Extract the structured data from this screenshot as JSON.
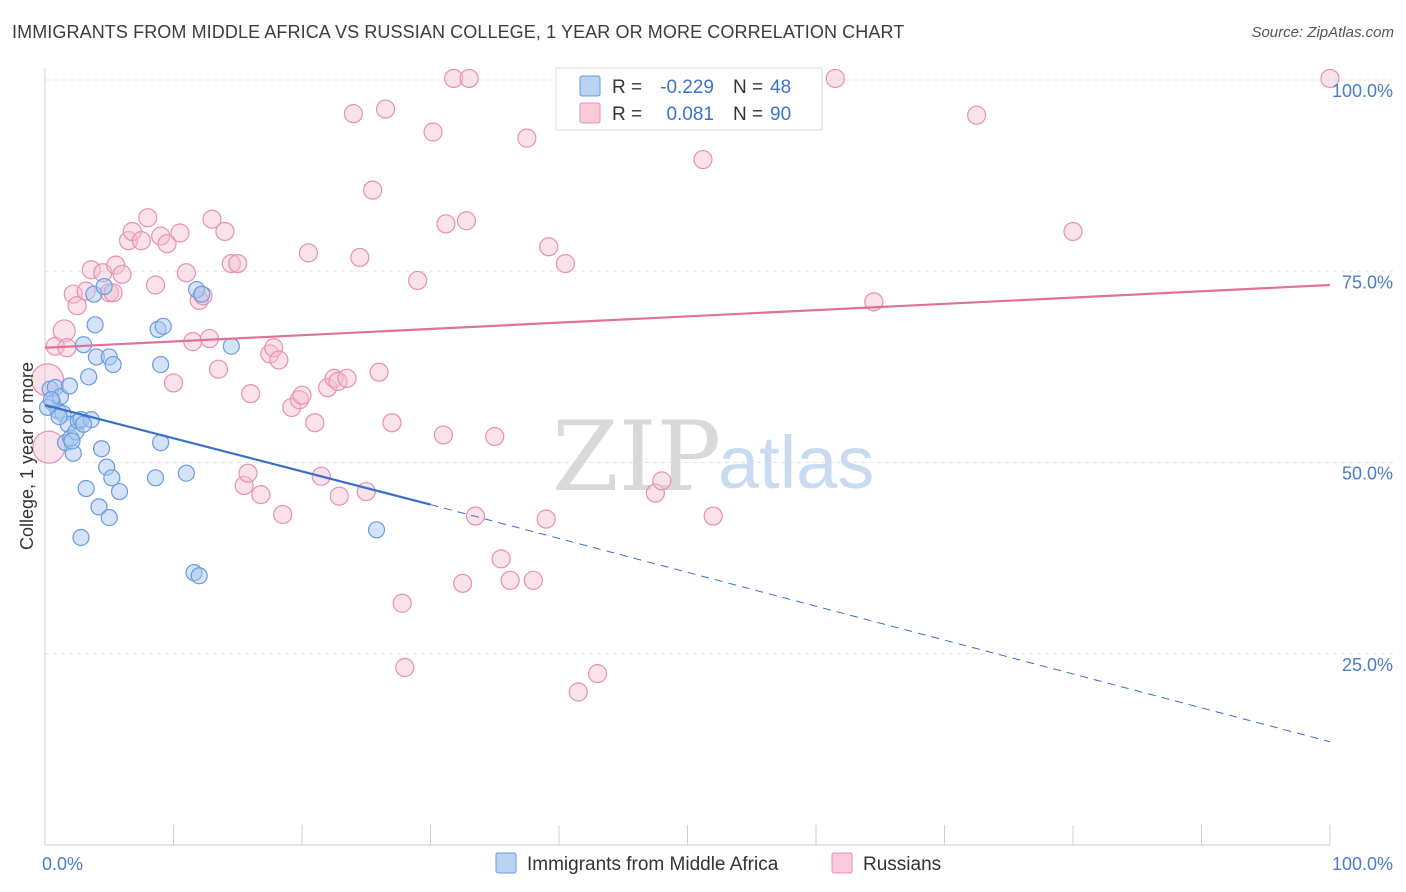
{
  "header": {
    "title": "IMMIGRANTS FROM MIDDLE AFRICA VS RUSSIAN COLLEGE, 1 YEAR OR MORE CORRELATION CHART",
    "source": "Source: ZipAtlas.com"
  },
  "watermark": {
    "zip": "ZIP",
    "atlas": "atlas"
  },
  "legend": {
    "r_label": "R =",
    "n_label": "N =",
    "series": [
      {
        "r": "-0.229",
        "n": "48"
      },
      {
        "r": "0.081",
        "n": "90"
      }
    ]
  },
  "colors": {
    "blue_fill": "#a9c8ef",
    "blue_stroke": "#6a9ae0",
    "blue_line": "#3a6fc9",
    "pink_fill": "#f5bfd2",
    "pink_stroke": "#e890b0",
    "pink_line": "#e0719a",
    "grid": "#e3e3e3",
    "axis_label": "#4a7cc9"
  },
  "chart_data": {
    "type": "scatter",
    "title": "IMMIGRANTS FROM MIDDLE AFRICA VS RUSSIAN COLLEGE, 1 YEAR OR MORE CORRELATION CHART",
    "xlabel": "",
    "ylabel": "College, 1 year or more",
    "xlim": [
      0,
      100
    ],
    "ylim": [
      0,
      105
    ],
    "x_tick_labels": [
      "0.0%",
      "100.0%"
    ],
    "y_ticks": [
      25,
      50,
      75,
      100
    ],
    "y_tick_labels": [
      "25.0%",
      "50.0%",
      "75.0%",
      "100.0%"
    ],
    "series": [
      {
        "name": "Immigrants from Middle Africa",
        "color": "#a9c8ef",
        "trend": {
          "x0": 0,
          "y0": 57.5,
          "x1": 30,
          "y1": 44.5,
          "dash_to_x": 100,
          "dash_to_y": 13.5
        },
        "points": [
          [
            0.4,
            59.6
          ],
          [
            0.6,
            57.8
          ],
          [
            0.8,
            59.8
          ],
          [
            1.0,
            56.8
          ],
          [
            1.2,
            58.6
          ],
          [
            1.4,
            56.4
          ],
          [
            1.6,
            52.6
          ],
          [
            1.8,
            55.0
          ],
          [
            1.9,
            60.0
          ],
          [
            2.0,
            53.2
          ],
          [
            2.2,
            51.2
          ],
          [
            2.4,
            54.0
          ],
          [
            2.6,
            55.4
          ],
          [
            2.8,
            55.6
          ],
          [
            3.0,
            65.4
          ],
          [
            3.2,
            46.6
          ],
          [
            3.4,
            61.2
          ],
          [
            3.6,
            55.6
          ],
          [
            3.8,
            72.0
          ],
          [
            3.9,
            68.0
          ],
          [
            4.0,
            63.8
          ],
          [
            4.2,
            44.2
          ],
          [
            4.4,
            51.8
          ],
          [
            4.6,
            73.0
          ],
          [
            4.8,
            49.4
          ],
          [
            5.0,
            63.8
          ],
          [
            5.2,
            48.0
          ],
          [
            5.3,
            62.8
          ],
          [
            5.0,
            42.8
          ],
          [
            5.8,
            46.2
          ],
          [
            2.8,
            40.2
          ],
          [
            8.8,
            67.4
          ],
          [
            9.0,
            52.6
          ],
          [
            8.6,
            48.0
          ],
          [
            9.0,
            62.8
          ],
          [
            9.2,
            67.8
          ],
          [
            11.0,
            48.6
          ],
          [
            11.6,
            35.6
          ],
          [
            12.0,
            35.2
          ],
          [
            11.8,
            72.6
          ],
          [
            14.5,
            65.2
          ],
          [
            12.2,
            72.0
          ],
          [
            25.8,
            41.2
          ],
          [
            0.2,
            57.2
          ],
          [
            0.5,
            58.2
          ],
          [
            1.1,
            56.0
          ],
          [
            2.1,
            52.8
          ],
          [
            3.0,
            55.0
          ]
        ]
      },
      {
        "name": "Russians",
        "color": "#f5bfd2",
        "trend": {
          "x0": 0,
          "y0": 65.0,
          "x1": 100,
          "y1": 73.2
        },
        "points": [
          [
            0.2,
            60.8
          ],
          [
            0.3,
            52.0
          ],
          [
            0.8,
            65.2
          ],
          [
            1.5,
            67.2
          ],
          [
            1.7,
            65.0
          ],
          [
            2.2,
            72.0
          ],
          [
            2.5,
            70.5
          ],
          [
            3.2,
            72.4
          ],
          [
            3.6,
            75.2
          ],
          [
            4.5,
            74.8
          ],
          [
            5.0,
            72.2
          ],
          [
            5.3,
            72.2
          ],
          [
            5.5,
            75.8
          ],
          [
            6.0,
            74.6
          ],
          [
            6.5,
            79.0
          ],
          [
            6.8,
            80.2
          ],
          [
            7.5,
            79.0
          ],
          [
            8.0,
            82.0
          ],
          [
            8.6,
            73.2
          ],
          [
            9.0,
            79.6
          ],
          [
            9.5,
            78.6
          ],
          [
            10.0,
            60.4
          ],
          [
            10.5,
            80.0
          ],
          [
            11.0,
            74.8
          ],
          [
            11.5,
            65.8
          ],
          [
            12.0,
            71.2
          ],
          [
            12.3,
            71.8
          ],
          [
            12.8,
            66.2
          ],
          [
            13.0,
            81.8
          ],
          [
            13.5,
            62.2
          ],
          [
            14.0,
            80.2
          ],
          [
            14.5,
            76.0
          ],
          [
            15.0,
            76.0
          ],
          [
            15.5,
            47.0
          ],
          [
            15.8,
            48.6
          ],
          [
            16.0,
            59.0
          ],
          [
            16.8,
            45.8
          ],
          [
            17.5,
            64.2
          ],
          [
            17.8,
            65.0
          ],
          [
            18.2,
            63.4
          ],
          [
            18.5,
            43.2
          ],
          [
            19.2,
            57.2
          ],
          [
            19.8,
            58.2
          ],
          [
            20.0,
            58.8
          ],
          [
            20.5,
            77.4
          ],
          [
            21.0,
            55.2
          ],
          [
            21.5,
            48.2
          ],
          [
            22.0,
            59.8
          ],
          [
            22.5,
            61.0
          ],
          [
            22.8,
            60.6
          ],
          [
            22.9,
            45.6
          ],
          [
            23.5,
            61.0
          ],
          [
            24.0,
            95.6
          ],
          [
            24.5,
            76.8
          ],
          [
            25.0,
            46.2
          ],
          [
            25.5,
            85.6
          ],
          [
            26.0,
            61.8
          ],
          [
            26.5,
            96.2
          ],
          [
            27.0,
            55.2
          ],
          [
            27.8,
            31.6
          ],
          [
            28.0,
            23.2
          ],
          [
            29.0,
            73.8
          ],
          [
            30.2,
            93.2
          ],
          [
            31.0,
            53.6
          ],
          [
            31.2,
            81.2
          ],
          [
            31.8,
            100.2
          ],
          [
            32.5,
            34.2
          ],
          [
            32.8,
            81.6
          ],
          [
            33.0,
            100.2
          ],
          [
            33.5,
            43.0
          ],
          [
            35.0,
            53.4
          ],
          [
            35.5,
            37.4
          ],
          [
            36.2,
            34.6
          ],
          [
            37.5,
            92.4
          ],
          [
            38.0,
            34.6
          ],
          [
            39.0,
            42.6
          ],
          [
            39.2,
            78.2
          ],
          [
            40.5,
            76.0
          ],
          [
            41.5,
            20.0
          ],
          [
            43.0,
            22.4
          ],
          [
            47.5,
            46.0
          ],
          [
            48.0,
            47.6
          ],
          [
            51.2,
            89.6
          ],
          [
            52.0,
            43.0
          ],
          [
            59.5,
            100.2
          ],
          [
            61.5,
            100.2
          ],
          [
            64.5,
            71.0
          ],
          [
            72.5,
            95.4
          ],
          [
            80.0,
            80.2
          ],
          [
            100.0,
            100.2
          ]
        ]
      }
    ],
    "bottom_legend": [
      "Immigrants from Middle Africa",
      "Russians"
    ]
  }
}
